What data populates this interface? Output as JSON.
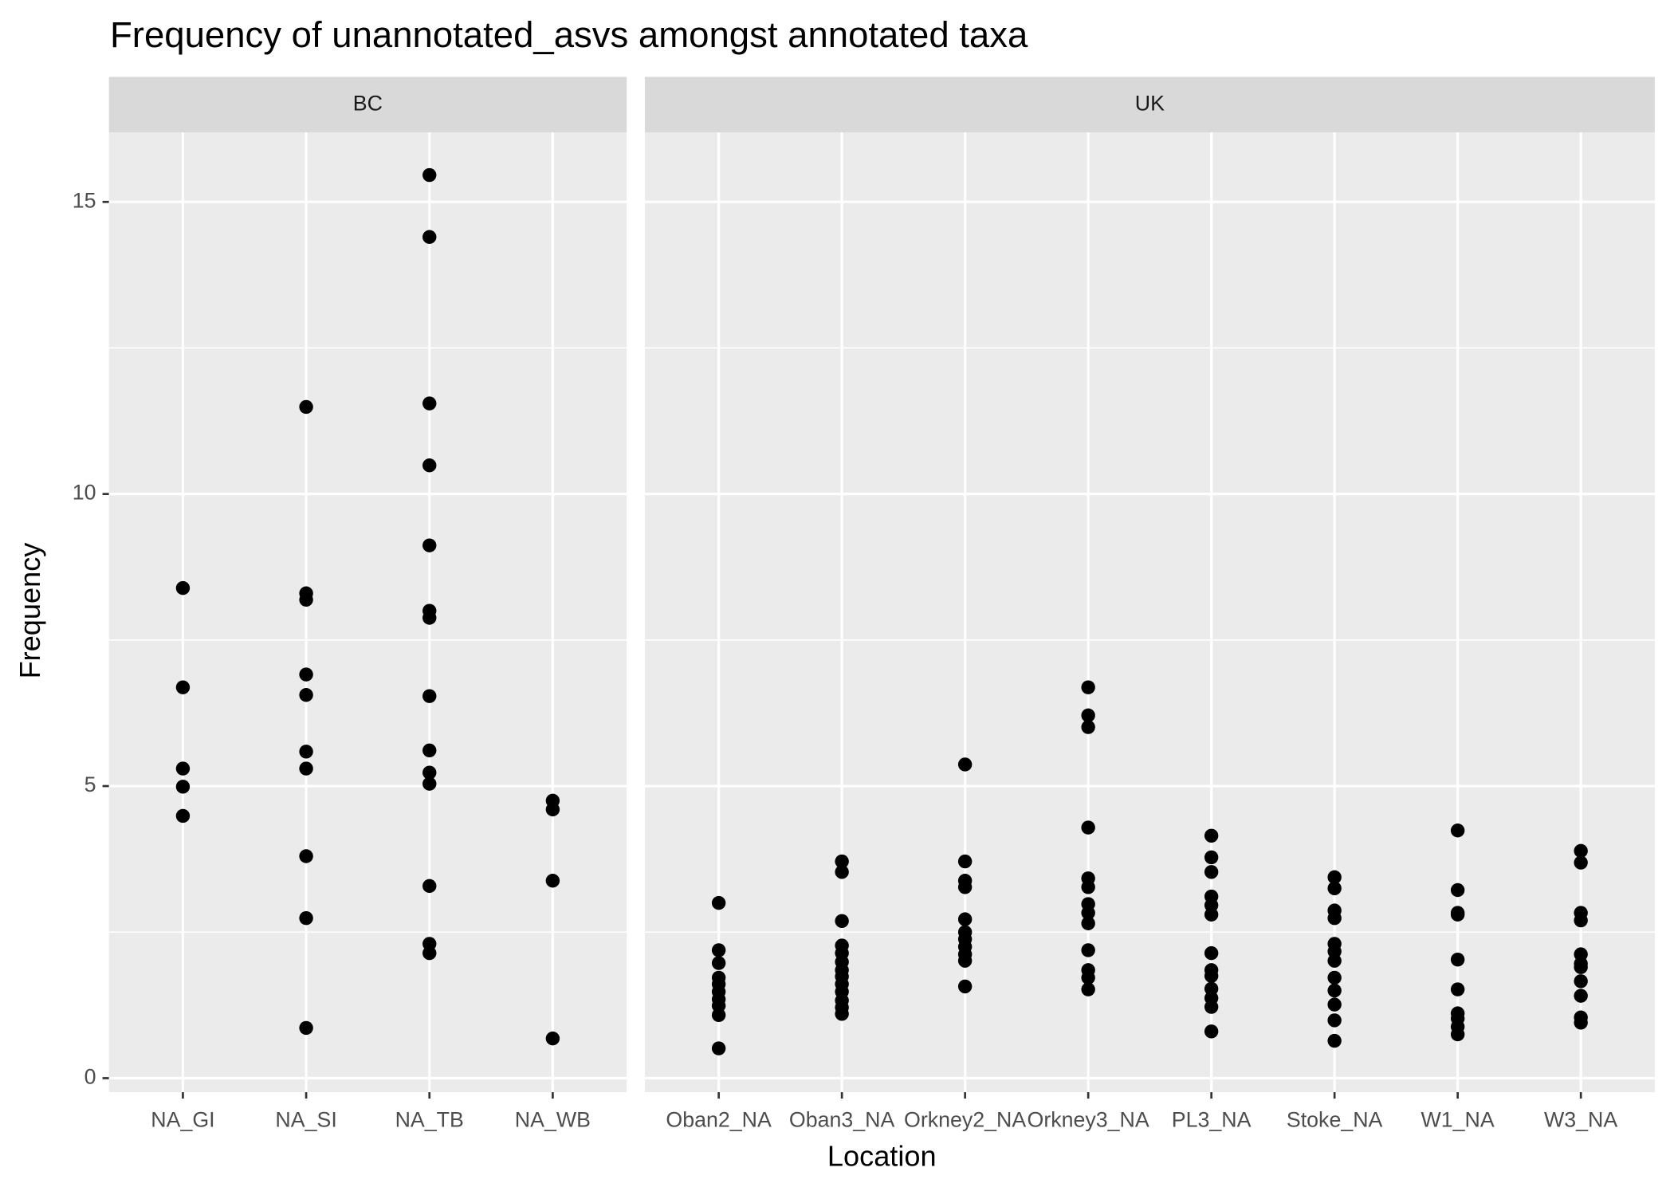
{
  "chart_data": {
    "type": "scatter",
    "title": "Frequency of unannotated_asvs amongst annotated taxa",
    "x_label": "Location",
    "y_label": "Frequency",
    "ylim": [
      -0.24,
      16.19
    ],
    "yticks": [
      0,
      5,
      10,
      15
    ],
    "minor_yticks": [
      2.5,
      7.5,
      12.5
    ],
    "grid": true,
    "color": "#000000",
    "facets": [
      {
        "name": "BC",
        "categories": [
          "NA_GI",
          "NA_SI",
          "NA_TB",
          "NA_WB"
        ],
        "values": [
          [
            8.39,
            6.69,
            5.3,
            4.99,
            4.49
          ],
          [
            11.49,
            8.3,
            8.19,
            6.91,
            6.56,
            5.59,
            5.3,
            3.8,
            2.74,
            0.86
          ],
          [
            15.46,
            14.4,
            11.55,
            10.49,
            9.12,
            8.0,
            7.88,
            6.54,
            5.61,
            5.23,
            5.04,
            3.29,
            2.3,
            2.14
          ],
          [
            4.75,
            4.6,
            3.38,
            0.68
          ]
        ]
      },
      {
        "name": "UK",
        "categories": [
          "Oban2_NA",
          "Oban3_NA",
          "Orkney2_NA",
          "Orkney3_NA",
          "PL3_NA",
          "Stoke_NA",
          "W1_NA",
          "W3_NA"
        ],
        "values": [
          [
            3.0,
            2.19,
            1.97,
            1.72,
            1.61,
            1.48,
            1.35,
            1.24,
            1.08,
            0.51
          ],
          [
            3.71,
            3.53,
            2.69,
            2.27,
            2.14,
            1.99,
            1.85,
            1.74,
            1.61,
            1.48,
            1.33,
            1.21,
            1.1
          ],
          [
            5.37,
            3.71,
            3.38,
            3.27,
            2.72,
            2.5,
            2.38,
            2.25,
            2.12,
            2.01,
            1.57
          ],
          [
            6.69,
            6.21,
            6.01,
            4.29,
            3.42,
            3.27,
            2.98,
            2.83,
            2.65,
            2.19,
            1.85,
            1.72,
            1.52
          ],
          [
            4.15,
            3.78,
            3.53,
            3.11,
            2.96,
            2.8,
            2.14,
            1.85,
            1.75,
            1.53,
            1.37,
            1.22,
            0.8
          ],
          [
            3.44,
            3.25,
            2.87,
            2.74,
            2.3,
            2.17,
            2.01,
            1.72,
            1.5,
            1.26,
            0.99,
            0.64
          ],
          [
            4.24,
            3.22,
            2.83,
            2.8,
            2.03,
            1.52,
            1.11,
            1.02,
            0.88,
            0.75
          ],
          [
            3.89,
            3.69,
            2.83,
            2.7,
            2.12,
            1.96,
            1.9,
            1.66,
            1.41,
            1.04,
            0.95
          ]
        ]
      }
    ]
  }
}
